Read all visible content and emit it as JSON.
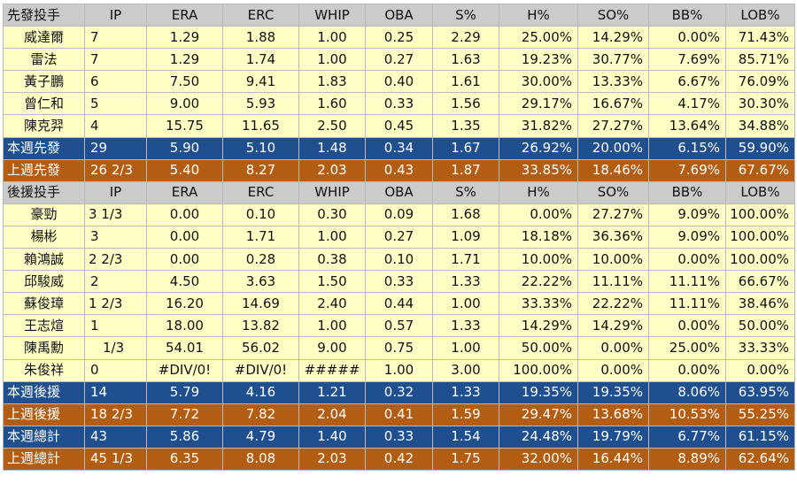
{
  "starters": {
    "header": [
      "先發投手",
      "IP",
      "ERA",
      "ERC",
      "WHIP",
      "OBA",
      "S%",
      "H%",
      "SO%",
      "BB%",
      "LOB%"
    ],
    "rows": [
      [
        "威達爾",
        "7",
        "1.29",
        "1.88",
        "1.00",
        "0.25",
        "2.29",
        "25.00%",
        "14.29%",
        "0.00%",
        "71.43%"
      ],
      [
        "雷法",
        "7",
        "1.29",
        "1.74",
        "1.00",
        "0.27",
        "1.63",
        "19.23%",
        "30.77%",
        "7.69%",
        "85.71%"
      ],
      [
        "黃子鵬",
        "6",
        "7.50",
        "9.41",
        "1.83",
        "0.40",
        "1.61",
        "30.00%",
        "13.33%",
        "6.67%",
        "76.09%"
      ],
      [
        "曾仁和",
        "5",
        "9.00",
        "5.93",
        "1.60",
        "0.33",
        "1.56",
        "29.17%",
        "16.67%",
        "4.17%",
        "30.30%"
      ],
      [
        "陳克羿",
        "4",
        "15.75",
        "11.65",
        "2.50",
        "0.45",
        "1.35",
        "31.82%",
        "27.27%",
        "13.64%",
        "34.88%"
      ]
    ],
    "this_week": [
      "本週先發",
      "29",
      "5.90",
      "5.10",
      "1.48",
      "0.34",
      "1.67",
      "26.92%",
      "20.00%",
      "6.15%",
      "59.90%"
    ],
    "last_week": [
      "上週先發",
      "26 2/3",
      "5.40",
      "8.27",
      "2.03",
      "0.43",
      "1.87",
      "33.85%",
      "18.46%",
      "7.69%",
      "67.67%"
    ]
  },
  "relievers": {
    "header": [
      "後援投手",
      "IP",
      "ERA",
      "ERC",
      "WHIP",
      "OBA",
      "S%",
      "H%",
      "SO%",
      "BB%",
      "LOB%"
    ],
    "rows": [
      [
        "豪勁",
        "3 1/3",
        "0.00",
        "0.10",
        "0.30",
        "0.09",
        "1.68",
        "0.00%",
        "27.27%",
        "9.09%",
        "100.00%"
      ],
      [
        "楊彬",
        "3",
        "0.00",
        "1.71",
        "1.00",
        "0.27",
        "1.09",
        "18.18%",
        "36.36%",
        "9.09%",
        "100.00%"
      ],
      [
        "賴鴻誠",
        "2 2/3",
        "0.00",
        "0.28",
        "0.38",
        "0.10",
        "1.71",
        "10.00%",
        "10.00%",
        "0.00%",
        "100.00%"
      ],
      [
        "邱駿威",
        "2",
        "4.50",
        "3.63",
        "1.50",
        "0.33",
        "1.33",
        "22.22%",
        "11.11%",
        "11.11%",
        "66.67%"
      ],
      [
        "蘇俊璋",
        "1 2/3",
        "16.20",
        "14.69",
        "2.40",
        "0.44",
        "1.00",
        "33.33%",
        "22.22%",
        "11.11%",
        "38.46%"
      ],
      [
        "王志煊",
        "1",
        "18.00",
        "13.82",
        "1.00",
        "0.57",
        "1.33",
        "14.29%",
        "14.29%",
        "0.00%",
        "50.00%"
      ],
      [
        "陳禹勳",
        "1/3",
        "54.01",
        "56.02",
        "9.00",
        "0.75",
        "1.00",
        "50.00%",
        "0.00%",
        "25.00%",
        "33.33%"
      ],
      [
        "朱俊祥",
        "0",
        "#DIV/0!",
        "#DIV/0!",
        "#####",
        "1.00",
        "3.00",
        "100.00%",
        "0.00%",
        "0.00%",
        "0.00%"
      ]
    ],
    "this_week": [
      "本週後援",
      "14",
      "5.79",
      "4.16",
      "1.21",
      "0.32",
      "1.33",
      "19.35%",
      "19.35%",
      "8.06%",
      "63.95%"
    ],
    "last_week": [
      "上週後援",
      "18 2/3",
      "7.72",
      "7.82",
      "2.04",
      "0.41",
      "1.59",
      "29.47%",
      "13.68%",
      "10.53%",
      "55.25%"
    ]
  },
  "totals": {
    "this_week": [
      "本週總計",
      "43",
      "5.86",
      "4.79",
      "1.40",
      "0.33",
      "1.54",
      "24.48%",
      "19.79%",
      "6.77%",
      "61.15%"
    ],
    "last_week": [
      "上週總計",
      "45 1/3",
      "6.35",
      "8.08",
      "2.03",
      "0.42",
      "1.75",
      "32.00%",
      "16.44%",
      "8.89%",
      "62.64%"
    ]
  },
  "colors": {
    "header_bg": "#cbcbcb",
    "row_bg": "#ffffc6",
    "this_week_bg": "#1f4f8f",
    "last_week_bg": "#b35d12"
  }
}
